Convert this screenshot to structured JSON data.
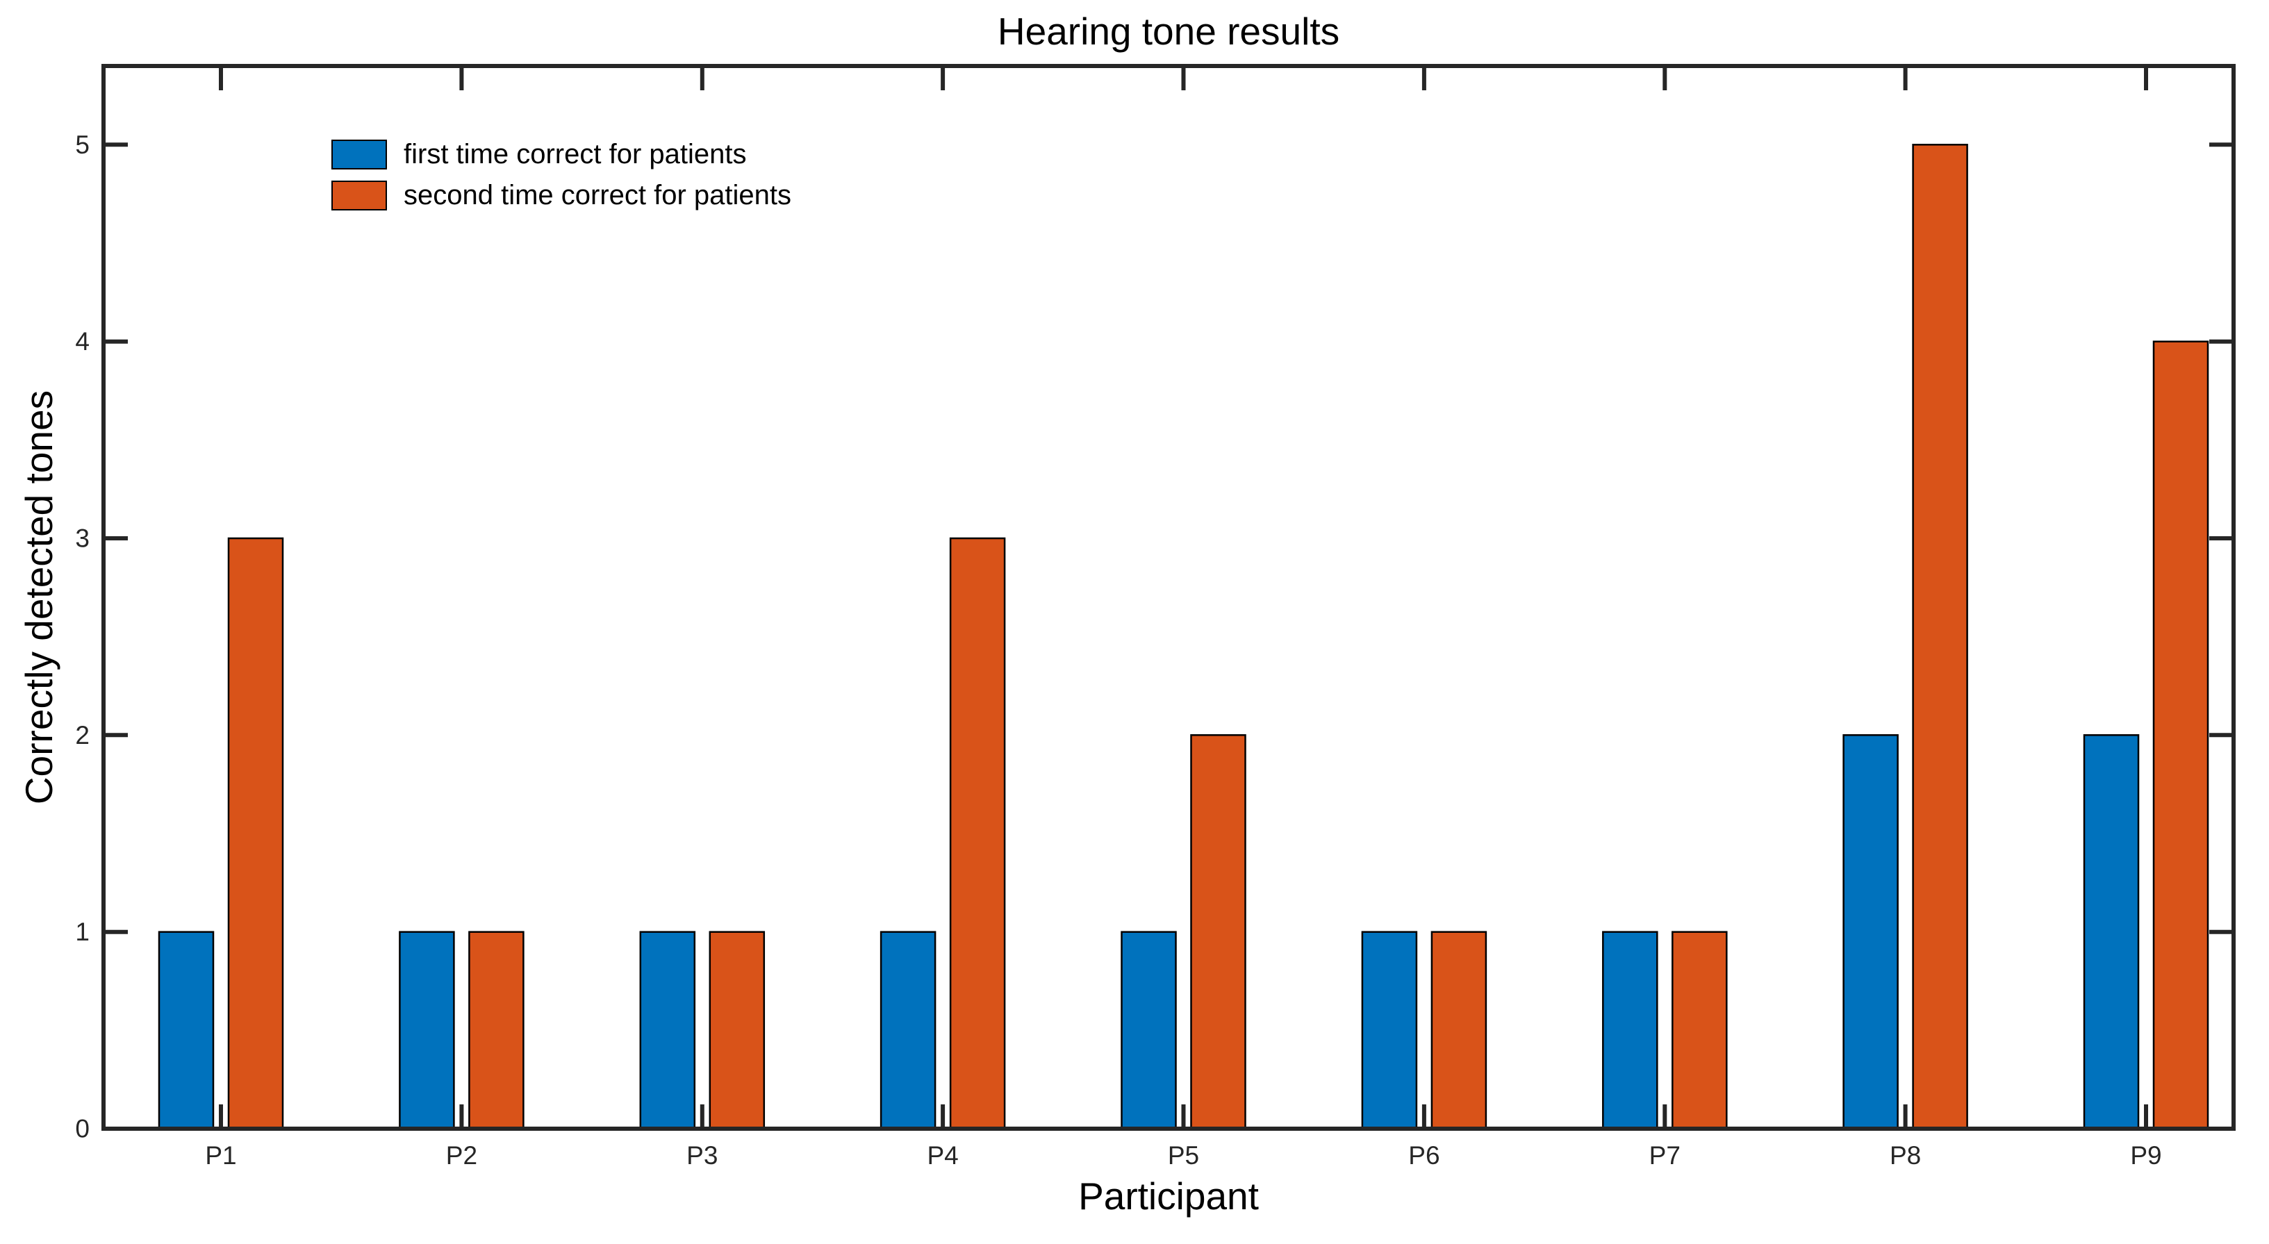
{
  "chart_data": {
    "type": "bar",
    "title": "Hearing tone results",
    "xlabel": "Participant",
    "ylabel": "Correctly detected tones",
    "categories": [
      "P1",
      "P2",
      "P3",
      "P4",
      "P5",
      "P6",
      "P7",
      "P8",
      "P9"
    ],
    "series": [
      {
        "name": "first time correct for patients",
        "color": "#0072BD",
        "values": [
          1,
          1,
          1,
          1,
          1,
          1,
          1,
          2,
          2
        ]
      },
      {
        "name": "second time correct for patients",
        "color": "#D95319",
        "values": [
          3,
          1,
          1,
          3,
          2,
          1,
          1,
          5,
          4
        ]
      }
    ],
    "yticks": [
      0,
      1,
      2,
      3,
      4,
      5
    ],
    "ylim": [
      0,
      5.4
    ],
    "grid": false,
    "legend_position": "top-left-inside",
    "bar_edge_color": "#000000",
    "axis_color": "#262626",
    "background_color": "#ffffff"
  }
}
